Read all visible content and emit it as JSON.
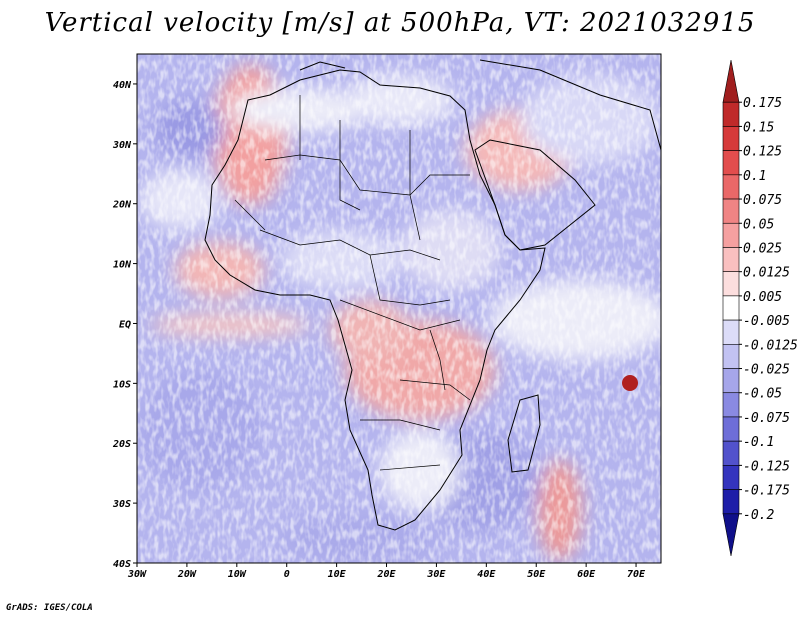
{
  "title": "Vertical velocity [m/s] at 500hPa, VT: 2021032915",
  "credit": "GrADS: IGES/COLA",
  "map": {
    "region": "Africa",
    "lon_range": [
      -30,
      75
    ],
    "lat_range": [
      -40,
      45
    ],
    "lon_ticks": [
      "30W",
      "20W",
      "10W",
      "0",
      "10E",
      "20E",
      "30E",
      "40E",
      "50E",
      "60E",
      "70E"
    ],
    "lat_ticks": [
      "40N",
      "30N",
      "20N",
      "10N",
      "EQ",
      "10S",
      "20S",
      "30S",
      "40S"
    ]
  },
  "colorbar": {
    "labels": [
      "0.175",
      "0.15",
      "0.125",
      "0.1",
      "0.075",
      "0.05",
      "0.025",
      "0.0125",
      "0.005",
      "-0.005",
      "-0.0125",
      "-0.025",
      "-0.05",
      "-0.075",
      "-0.1",
      "-0.125",
      "-0.175",
      "-0.2"
    ],
    "colors": [
      "#a01e1e",
      "#c02a2a",
      "#d63a3a",
      "#e24d4d",
      "#ea6868",
      "#f08484",
      "#f5a0a0",
      "#f9c0c0",
      "#fcdede",
      "#ffffff",
      "#dcdcf8",
      "#c2c2f2",
      "#a6a6ea",
      "#8a8ae2",
      "#6e6ed8",
      "#5252cc",
      "#3434be",
      "#1e1ea8",
      "#10108a"
    ]
  }
}
